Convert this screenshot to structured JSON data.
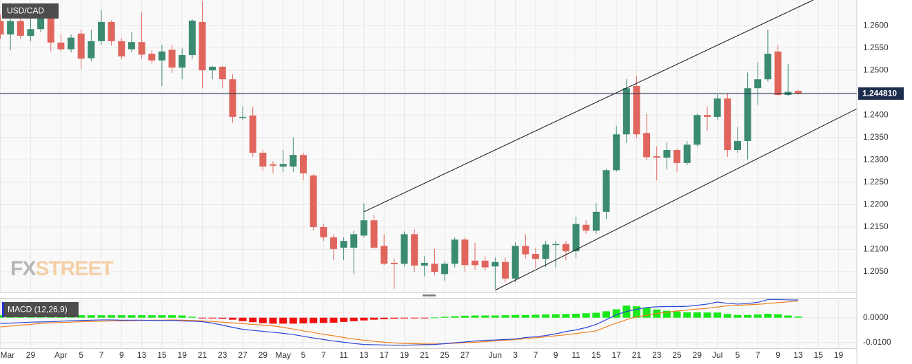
{
  "chart_data": [
    {
      "type": "candlestick",
      "title": "USD/CAD",
      "categories": [
        "Mar",
        null,
        null,
        "29",
        null,
        null,
        "Apr",
        null,
        "5",
        null,
        "7",
        null,
        "9",
        null,
        "13",
        null,
        "15",
        null,
        "19",
        null,
        "21",
        null,
        "23",
        null,
        "27",
        null,
        "29",
        null,
        "May",
        null,
        "5",
        null,
        "7",
        null,
        "11",
        null,
        "13",
        null,
        "17",
        null,
        "19",
        null,
        "21",
        null,
        "25",
        null,
        "27",
        null,
        null,
        "Jun",
        null,
        "3",
        null,
        "7",
        null,
        "9",
        null,
        "11",
        null,
        "15",
        null,
        "17",
        null,
        "21",
        null,
        "23",
        null,
        "25",
        null,
        "29",
        null,
        "Jul",
        null,
        "5",
        null,
        "7",
        null,
        "9",
        null,
        "13",
        null,
        "15",
        null,
        "19",
        null
      ],
      "open": [
        1.261,
        1.258,
        1.261,
        1.2577,
        1.2592,
        1.263,
        1.2562,
        1.2547,
        1.2582,
        1.2527,
        1.2565,
        1.2608,
        1.2565,
        1.2547,
        1.2563,
        1.2537,
        1.2522,
        1.2546,
        1.2506,
        1.2534,
        1.2608,
        1.25,
        1.2508,
        1.248,
        1.2394,
        1.2399,
        1.2316,
        1.229,
        1.2285,
        1.2285,
        1.2311,
        1.2265,
        1.215,
        1.2127,
        1.2104,
        1.2104,
        1.2131,
        1.2165,
        1.2108,
        1.207,
        1.2068,
        1.2134,
        1.2064,
        1.2068,
        1.2045,
        1.2068,
        1.2122,
        1.2075,
        1.2075,
        1.2062,
        1.2072,
        1.2035,
        1.2108,
        1.209,
        1.2079,
        1.211,
        1.2112,
        1.2096,
        1.2155,
        1.2142,
        1.2184,
        1.2277,
        1.2357,
        1.2465,
        1.236,
        1.2308,
        1.2305,
        1.2322,
        1.2293,
        1.2334,
        1.24,
        1.2396,
        1.2437,
        1.2322,
        1.2342,
        1.246,
        1.248,
        1.2542,
        1.2445,
        1.2454,
        null,
        null,
        null,
        null,
        null
      ],
      "high": [
        1.2625,
        1.265,
        1.2637,
        1.2626,
        1.265,
        1.2638,
        1.258,
        1.258,
        1.259,
        1.259,
        1.2635,
        1.2612,
        1.2572,
        1.2585,
        1.263,
        1.2545,
        1.2557,
        1.2557,
        1.2549,
        1.2614,
        1.2654,
        1.251,
        1.251,
        1.2491,
        1.2419,
        1.2419,
        1.2322,
        1.2297,
        1.2322,
        1.235,
        1.2316,
        1.2268,
        1.2157,
        1.2134,
        1.2127,
        1.2142,
        1.2203,
        1.2177,
        1.2134,
        1.208,
        1.214,
        1.2145,
        1.2085,
        1.2101,
        1.2073,
        1.2127,
        1.2127,
        1.2115,
        1.2085,
        1.2082,
        1.2082,
        1.2116,
        1.2134,
        1.2104,
        1.2119,
        1.2119,
        1.2119,
        1.2173,
        1.2165,
        1.2203,
        1.228,
        1.2376,
        1.248,
        1.2488,
        1.2403,
        1.233,
        1.2339,
        1.2325,
        1.2342,
        1.2403,
        1.2419,
        1.2446,
        1.2449,
        1.2373,
        1.2495,
        1.2518,
        1.2591,
        1.2557,
        1.2514,
        1.2457,
        null,
        null,
        null,
        null,
        null
      ],
      "low": [
        1.257,
        1.2545,
        1.257,
        1.2565,
        1.2585,
        1.2542,
        1.2542,
        1.254,
        1.2503,
        1.252,
        1.2557,
        1.2555,
        1.2525,
        1.254,
        1.2526,
        1.2515,
        1.2465,
        1.2494,
        1.248,
        1.2525,
        1.246,
        1.248,
        1.246,
        1.2383,
        1.2388,
        1.2307,
        1.2276,
        1.227,
        1.2273,
        1.2273,
        1.2254,
        1.2142,
        1.2119,
        1.2076,
        1.2076,
        1.2045,
        1.2127,
        1.2101,
        1.2065,
        1.2012,
        1.2062,
        1.205,
        1.204,
        1.2042,
        1.203,
        1.206,
        1.205,
        1.2055,
        1.2052,
        1.2012,
        1.2027,
        1.2027,
        1.208,
        1.2058,
        1.206,
        1.206,
        1.2076,
        1.2081,
        1.2135,
        1.2135,
        1.2168,
        1.2273,
        1.2338,
        1.2349,
        1.23,
        1.2254,
        1.2279,
        1.2273,
        1.2288,
        1.233,
        1.2365,
        1.239,
        1.2307,
        1.2316,
        1.2301,
        1.2423,
        1.2475,
        1.2442,
        1.2442,
        1.2446,
        null,
        null,
        null,
        null,
        null
      ],
      "close": [
        1.258,
        1.261,
        1.2577,
        1.2592,
        1.2627,
        1.2562,
        1.2547,
        1.2573,
        1.2526,
        1.2565,
        1.2608,
        1.2565,
        1.2531,
        1.2563,
        1.2535,
        1.2522,
        1.2542,
        1.2506,
        1.2534,
        1.2611,
        1.25,
        1.2508,
        1.248,
        1.2396,
        1.2396,
        1.2316,
        1.2285,
        1.2287,
        1.2291,
        1.2311,
        1.227,
        1.215,
        1.2127,
        1.2101,
        1.2119,
        1.2134,
        1.2165,
        1.2104,
        1.2068,
        1.2067,
        1.2134,
        1.2064,
        1.207,
        1.205,
        1.2068,
        1.2122,
        1.2065,
        1.2065,
        1.206,
        1.2072,
        1.2035,
        1.2108,
        1.2089,
        1.2079,
        1.2111,
        1.2112,
        1.2096,
        1.2157,
        1.2142,
        1.2184,
        1.2277,
        1.2357,
        1.246,
        1.2357,
        1.2306,
        1.2305,
        1.2322,
        1.2293,
        1.2334,
        1.24,
        1.2396,
        1.2437,
        1.2322,
        1.2342,
        1.246,
        1.248,
        1.2537,
        1.2445,
        1.2452,
        1.24481,
        null,
        null,
        null,
        null,
        null
      ],
      "up_color": "#3b8a72",
      "down_color": "#e0665d",
      "ylim": [
        1.2004,
        1.2657
      ],
      "yticks": [
        {
          "value": 1.205,
          "label": "1.2050"
        },
        {
          "value": 1.21,
          "label": "1.2100"
        },
        {
          "value": 1.215,
          "label": "1.2150"
        },
        {
          "value": 1.22,
          "label": "1.2200"
        },
        {
          "value": 1.225,
          "label": "1.2250"
        },
        {
          "value": 1.23,
          "label": "1.2300"
        },
        {
          "value": 1.235,
          "label": "1.2350"
        },
        {
          "value": 1.24,
          "label": "1.2400"
        },
        {
          "value": 1.245,
          "label": "1.2450"
        },
        {
          "value": 1.25,
          "label": "1.2500"
        },
        {
          "value": 1.255,
          "label": "1.2550"
        },
        {
          "value": 1.26,
          "label": "1.2600"
        }
      ],
      "last_price": {
        "value": 1.24481,
        "label": "1.244810"
      },
      "trend_lines": [
        {
          "x": [
            36,
            80.5
          ],
          "y": [
            1.2184,
            1.2657
          ]
        },
        {
          "x": [
            49,
            84.8
          ],
          "y": [
            1.2009,
            1.2414
          ]
        }
      ],
      "watermark": [
        "FX",
        "STREET"
      ],
      "grid": true
    },
    {
      "type": "macd",
      "title": "MACD (12,26,9)",
      "macd": [
        -0.0023,
        -0.0022,
        -0.002,
        -0.0018,
        -0.0017,
        -0.0016,
        -0.0014,
        -0.0012,
        -0.0011,
        -0.001,
        -0.0009,
        -0.0009,
        -0.001,
        -0.001,
        -0.001,
        -0.0011,
        -0.0011,
        -0.0011,
        -0.0013,
        -0.0014,
        -0.0016,
        -0.0022,
        -0.003,
        -0.0039,
        -0.0047,
        -0.0051,
        -0.0055,
        -0.0059,
        -0.0063,
        -0.0068,
        -0.0075,
        -0.0082,
        -0.0088,
        -0.0094,
        -0.0099,
        -0.0104,
        -0.0108,
        -0.0109,
        -0.011,
        -0.0111,
        -0.0111,
        -0.011,
        -0.0109,
        -0.0108,
        -0.0105,
        -0.0101,
        -0.0098,
        -0.0094,
        -0.0091,
        -0.009,
        -0.0088,
        -0.0086,
        -0.008,
        -0.0077,
        -0.0072,
        -0.0065,
        -0.0056,
        -0.0049,
        -0.004,
        -0.0027,
        -0.0008,
        0.0012,
        0.0025,
        0.0034,
        0.0041,
        0.0044,
        0.0045,
        0.0045,
        0.0046,
        0.005,
        0.0055,
        0.0063,
        0.0058,
        0.0055,
        0.0057,
        0.0062,
        0.0073,
        0.0073,
        0.0072,
        0.0071,
        null,
        null,
        null,
        null,
        null
      ],
      "signal": [
        -0.0037,
        -0.0034,
        -0.003,
        -0.0027,
        -0.0023,
        -0.0021,
        -0.0019,
        -0.0018,
        -0.0016,
        -0.0015,
        -0.0014,
        -0.0013,
        -0.0013,
        -0.0012,
        -0.0011,
        -0.001,
        -0.001,
        -0.0009,
        -0.001,
        -0.0011,
        -0.0013,
        -0.0015,
        -0.0018,
        -0.0021,
        -0.0024,
        -0.0027,
        -0.003,
        -0.0033,
        -0.0039,
        -0.0046,
        -0.0053,
        -0.006,
        -0.0067,
        -0.0073,
        -0.008,
        -0.0086,
        -0.0091,
        -0.0095,
        -0.0099,
        -0.0102,
        -0.0104,
        -0.0105,
        -0.0106,
        -0.0106,
        -0.0105,
        -0.0103,
        -0.0101,
        -0.0099,
        -0.0097,
        -0.0094,
        -0.0091,
        -0.0088,
        -0.0085,
        -0.0081,
        -0.0077,
        -0.0073,
        -0.0069,
        -0.0064,
        -0.0059,
        -0.0053,
        -0.0037,
        -0.0022,
        -0.0008,
        0.0003,
        0.001,
        0.0017,
        0.0022,
        0.0027,
        0.0031,
        0.0035,
        0.0038,
        0.0043,
        0.0048,
        0.005,
        0.0052,
        0.0054,
        0.0057,
        0.0061,
        0.0064,
        0.0068,
        null,
        null,
        null,
        null,
        null
      ],
      "histogram": [
        0.001,
        0.001,
        0.001,
        0.001,
        0.001,
        0.001,
        0.001,
        0.001,
        0.001,
        0.001,
        0.001,
        0.001,
        0.001,
        0.001,
        0.001,
        0.001,
        0.001,
        0.001,
        0.0009,
        0.0004,
        -0.0002,
        -0.0003,
        -0.0004,
        -0.0008,
        -0.0014,
        -0.0018,
        -0.0022,
        -0.0024,
        -0.0024,
        -0.0024,
        -0.0023,
        -0.0022,
        -0.0021,
        -0.002,
        -0.0017,
        -0.0014,
        -0.0011,
        -0.0008,
        -0.0006,
        -0.0004,
        -0.0003,
        -0.0001,
        -0.0001,
        0.0001,
        0.0004,
        0.0006,
        0.0008,
        0.0009,
        0.0009,
        0.0009,
        0.001,
        0.0011,
        0.0011,
        0.0012,
        0.0013,
        0.0014,
        0.0015,
        0.0016,
        0.0018,
        0.002,
        0.0026,
        0.0034,
        0.0049,
        0.0046,
        0.004,
        0.0033,
        0.0028,
        0.0025,
        0.0022,
        0.0022,
        0.0021,
        0.0021,
        0.0015,
        0.0011,
        0.0011,
        0.0013,
        0.0016,
        0.0014,
        0.0009,
        0.0005,
        null,
        null,
        null,
        null,
        null
      ],
      "macd_color": "#2b45d6",
      "signal_color": "#f07f1c",
      "positive_color": "#1be81b",
      "negative_color": "#f21010",
      "ylim": [
        -0.0123,
        0.0077
      ],
      "yticks": [
        {
          "value": 0,
          "label": "0.0000"
        },
        {
          "value": -0.01,
          "label": "-0.0100"
        }
      ],
      "grid": true
    }
  ]
}
